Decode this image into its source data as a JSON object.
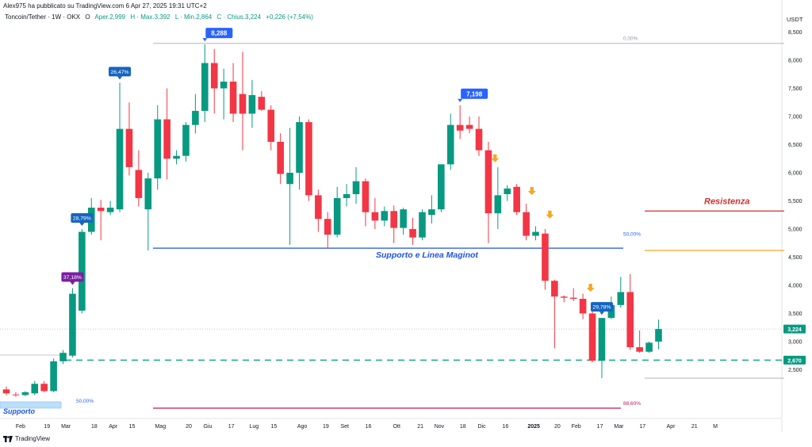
{
  "header": {
    "published_line": "Alex975 ha pubblicato su TradingView.com 6 Apr 27, 2025 19:31 UTC+2"
  },
  "legend": {
    "symbol": "Toncoin/Tether · 1W · OKX",
    "open_label": "O",
    "open": "Aper.2,999",
    "high": "H · Max.3,392",
    "low": "L · Min.2,864",
    "close": "C · Chius.3,224",
    "change": "+0,226 (+7,54%)"
  },
  "footer": {
    "brand": "TradingView"
  },
  "colors": {
    "up": "#089981",
    "down": "#f23645",
    "support": "#1e53e5",
    "resistance": "#d32f2f",
    "orange_line": "#f5a623",
    "dashed": "#22ab94",
    "fib_pink": "#c2185b"
  },
  "chart_data": {
    "type": "candlestick",
    "currency_label": "USDT",
    "y_ticks": [
      "8,500",
      "8,000",
      "7,500",
      "7,000",
      "6,500",
      "6,000",
      "5,500",
      "5,000",
      "4,500",
      "4,000",
      "3,500",
      "3,000",
      "2,500"
    ],
    "y_tick_values": [
      8.5,
      8.0,
      7.5,
      7.0,
      6.5,
      6.0,
      5.5,
      5.0,
      4.5,
      4.0,
      3.5,
      3.0,
      2.5
    ],
    "x_ticks": [
      {
        "label": "Feb",
        "idx": 1.5
      },
      {
        "label": "19",
        "idx": 4.3
      },
      {
        "label": "Mar",
        "idx": 6.3
      },
      {
        "label": "18",
        "idx": 9.3
      },
      {
        "label": "Apr",
        "idx": 11.3
      },
      {
        "label": "15",
        "idx": 13.3
      },
      {
        "label": "Mag",
        "idx": 16.3
      },
      {
        "label": "20",
        "idx": 19.3
      },
      {
        "label": "Giu",
        "idx": 21.3
      },
      {
        "label": "17",
        "idx": 23.8
      },
      {
        "label": "Lug",
        "idx": 26.2
      },
      {
        "label": "15",
        "idx": 28.3
      },
      {
        "label": "Ago",
        "idx": 31.3
      },
      {
        "label": "19",
        "idx": 33.8
      },
      {
        "label": "Set",
        "idx": 35.8
      },
      {
        "label": "16",
        "idx": 38.3
      },
      {
        "label": "Ott",
        "idx": 41.3
      },
      {
        "label": "21",
        "idx": 43.8
      },
      {
        "label": "Nov",
        "idx": 45.8
      },
      {
        "label": "18",
        "idx": 48.3
      },
      {
        "label": "Dic",
        "idx": 50.3
      },
      {
        "label": "16",
        "idx": 52.8
      },
      {
        "label": "2025",
        "idx": 55.8
      },
      {
        "label": "20",
        "idx": 58.3
      },
      {
        "label": "Feb",
        "idx": 60.3
      },
      {
        "label": "17",
        "idx": 62.8
      },
      {
        "label": "Mar",
        "idx": 64.8
      },
      {
        "label": "17",
        "idx": 67.3
      },
      {
        "label": "Apr",
        "idx": 70.3
      },
      {
        "label": "21",
        "idx": 72.8
      },
      {
        "label": "M",
        "idx": 75.0
      }
    ],
    "candles": [
      {
        "o": 2.15,
        "h": 2.2,
        "l": 2.05,
        "c": 2.08
      },
      {
        "o": 2.06,
        "h": 2.1,
        "l": 2.02,
        "c": 2.05
      },
      {
        "o": 2.05,
        "h": 2.12,
        "l": 2.03,
        "c": 2.1
      },
      {
        "o": 2.08,
        "h": 2.3,
        "l": 2.05,
        "c": 2.25
      },
      {
        "o": 2.25,
        "h": 2.3,
        "l": 2.1,
        "c": 2.12
      },
      {
        "o": 2.12,
        "h": 2.7,
        "l": 2.1,
        "c": 2.65
      },
      {
        "o": 2.65,
        "h": 2.85,
        "l": 2.6,
        "c": 2.8
      },
      {
        "o": 2.75,
        "h": 3.95,
        "l": 2.72,
        "c": 3.85
      },
      {
        "o": 3.55,
        "h": 5.0,
        "l": 3.5,
        "c": 4.95
      },
      {
        "o": 4.95,
        "h": 5.55,
        "l": 4.9,
        "c": 5.38
      },
      {
        "o": 5.38,
        "h": 5.52,
        "l": 4.8,
        "c": 5.32
      },
      {
        "o": 5.3,
        "h": 5.5,
        "l": 5.25,
        "c": 5.38
      },
      {
        "o": 5.35,
        "h": 7.6,
        "l": 5.3,
        "c": 6.78
      },
      {
        "o": 6.78,
        "h": 7.25,
        "l": 5.95,
        "c": 6.1
      },
      {
        "o": 6.05,
        "h": 6.4,
        "l": 5.4,
        "c": 5.55
      },
      {
        "o": 5.35,
        "h": 6.0,
        "l": 4.62,
        "c": 5.9
      },
      {
        "o": 5.9,
        "h": 7.2,
        "l": 5.7,
        "c": 6.95
      },
      {
        "o": 6.95,
        "h": 7.5,
        "l": 5.88,
        "c": 6.25
      },
      {
        "o": 6.25,
        "h": 6.4,
        "l": 6.15,
        "c": 6.3
      },
      {
        "o": 6.3,
        "h": 6.9,
        "l": 6.2,
        "c": 6.85
      },
      {
        "o": 6.85,
        "h": 7.4,
        "l": 6.7,
        "c": 7.1
      },
      {
        "o": 7.1,
        "h": 8.28,
        "l": 6.9,
        "c": 7.95
      },
      {
        "o": 7.95,
        "h": 8.2,
        "l": 7.05,
        "c": 7.5
      },
      {
        "o": 7.5,
        "h": 7.85,
        "l": 6.95,
        "c": 7.62
      },
      {
        "o": 7.62,
        "h": 7.95,
        "l": 6.9,
        "c": 7.05
      },
      {
        "o": 7.4,
        "h": 8.15,
        "l": 6.4,
        "c": 7.05
      },
      {
        "o": 7.05,
        "h": 7.65,
        "l": 6.8,
        "c": 7.38
      },
      {
        "o": 7.35,
        "h": 7.45,
        "l": 7.1,
        "c": 7.12
      },
      {
        "o": 7.12,
        "h": 7.2,
        "l": 6.4,
        "c": 6.55
      },
      {
        "o": 6.55,
        "h": 6.7,
        "l": 5.8,
        "c": 5.98
      },
      {
        "o": 5.8,
        "h": 6.8,
        "l": 4.72,
        "c": 6.0
      },
      {
        "o": 6.0,
        "h": 7.0,
        "l": 5.7,
        "c": 6.9
      },
      {
        "o": 6.9,
        "h": 6.95,
        "l": 5.5,
        "c": 5.6
      },
      {
        "o": 5.6,
        "h": 5.7,
        "l": 4.95,
        "c": 5.18
      },
      {
        "o": 5.18,
        "h": 5.3,
        "l": 4.65,
        "c": 4.9
      },
      {
        "o": 4.9,
        "h": 5.75,
        "l": 4.85,
        "c": 5.55
      },
      {
        "o": 5.55,
        "h": 5.8,
        "l": 5.4,
        "c": 5.62
      },
      {
        "o": 5.62,
        "h": 6.1,
        "l": 5.45,
        "c": 5.85
      },
      {
        "o": 5.85,
        "h": 5.9,
        "l": 5.05,
        "c": 5.3
      },
      {
        "o": 5.3,
        "h": 5.55,
        "l": 5.0,
        "c": 5.15
      },
      {
        "o": 5.15,
        "h": 5.4,
        "l": 5.05,
        "c": 5.32
      },
      {
        "o": 5.32,
        "h": 5.42,
        "l": 4.75,
        "c": 5.02
      },
      {
        "o": 5.02,
        "h": 5.38,
        "l": 4.9,
        "c": 5.35
      },
      {
        "o": 5.0,
        "h": 5.2,
        "l": 4.72,
        "c": 4.85
      },
      {
        "o": 4.85,
        "h": 5.35,
        "l": 4.8,
        "c": 5.3
      },
      {
        "o": 5.25,
        "h": 5.6,
        "l": 5.1,
        "c": 5.35
      },
      {
        "o": 5.35,
        "h": 6.15,
        "l": 5.3,
        "c": 6.15
      },
      {
        "o": 6.15,
        "h": 7.05,
        "l": 6.05,
        "c": 6.85
      },
      {
        "o": 6.85,
        "h": 7.2,
        "l": 6.6,
        "c": 6.75
      },
      {
        "o": 6.85,
        "h": 7.0,
        "l": 6.7,
        "c": 6.78
      },
      {
        "o": 6.78,
        "h": 7.0,
        "l": 6.3,
        "c": 6.4
      },
      {
        "o": 6.4,
        "h": 6.55,
        "l": 4.75,
        "c": 5.28
      },
      {
        "o": 5.28,
        "h": 6.1,
        "l": 5.0,
        "c": 5.6
      },
      {
        "o": 5.62,
        "h": 5.78,
        "l": 5.5,
        "c": 5.72
      },
      {
        "o": 5.75,
        "h": 5.8,
        "l": 5.25,
        "c": 5.3
      },
      {
        "o": 5.3,
        "h": 5.45,
        "l": 4.8,
        "c": 4.88
      },
      {
        "o": 4.88,
        "h": 5.05,
        "l": 4.8,
        "c": 4.95
      },
      {
        "o": 4.92,
        "h": 5.0,
        "l": 3.92,
        "c": 4.08
      },
      {
        "o": 4.08,
        "h": 4.1,
        "l": 2.88,
        "c": 3.8
      },
      {
        "o": 3.8,
        "h": 3.82,
        "l": 3.7,
        "c": 3.78
      },
      {
        "o": 3.78,
        "h": 3.95,
        "l": 3.72,
        "c": 3.76
      },
      {
        "o": 3.76,
        "h": 3.85,
        "l": 3.4,
        "c": 3.5
      },
      {
        "o": 3.5,
        "h": 3.55,
        "l": 2.63,
        "c": 2.66
      },
      {
        "o": 2.66,
        "h": 3.42,
        "l": 2.35,
        "c": 3.42
      },
      {
        "o": 3.42,
        "h": 3.8,
        "l": 3.4,
        "c": 3.65
      },
      {
        "o": 3.65,
        "h": 4.15,
        "l": 3.6,
        "c": 3.88
      },
      {
        "o": 3.88,
        "h": 4.2,
        "l": 2.85,
        "c": 2.9
      },
      {
        "o": 2.9,
        "h": 3.2,
        "l": 2.8,
        "c": 2.82
      },
      {
        "o": 2.82,
        "h": 3.0,
        "l": 2.8,
        "c": 2.98
      },
      {
        "o": 2.999,
        "h": 3.392,
        "l": 2.864,
        "c": 3.224
      }
    ],
    "lines": {
      "top_fib": {
        "value": 8.3,
        "label": "0,00%"
      },
      "support": {
        "value": 4.66,
        "label": "Supporto e Linea Maginot"
      },
      "fib_mid": {
        "label": "50,00%"
      },
      "resistance": {
        "value": 5.32,
        "label": "Resistenza"
      },
      "orange": {
        "value": 4.62
      },
      "dashed": {
        "value": 2.67,
        "label": "2,670"
      },
      "low_fib": {
        "value": 2.35
      },
      "bottom_fib": {
        "value": 1.85,
        "label": "88,60%"
      },
      "left_support": {
        "label": "Supporto",
        "fib_label": "50,00%"
      }
    },
    "last_price": {
      "value": 3.224,
      "label": "3,224"
    },
    "callouts": [
      {
        "text": "8,288",
        "idx": 21,
        "price": 8.28
      },
      {
        "text": "26,47%",
        "idx": 12,
        "price": 7.6
      },
      {
        "text": "28,79%",
        "idx": 8,
        "price": 5.0
      },
      {
        "text": "37,18%",
        "idx": 7,
        "price": 3.95
      },
      {
        "text": "7,198",
        "idx": 48,
        "price": 7.2
      },
      {
        "text": "29,78%",
        "idx": 63,
        "price": 3.42
      }
    ],
    "arrows": [
      {
        "idx": 51.7,
        "price": 6.2
      },
      {
        "idx": 55.6,
        "price": 5.62
      },
      {
        "idx": 57.5,
        "price": 5.2
      },
      {
        "idx": 61.8,
        "price": 3.9
      }
    ]
  }
}
